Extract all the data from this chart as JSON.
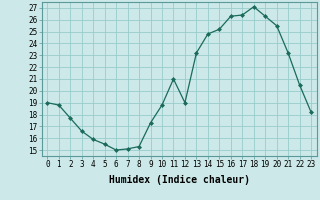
{
  "x": [
    0,
    1,
    2,
    3,
    4,
    5,
    6,
    7,
    8,
    9,
    10,
    11,
    12,
    13,
    14,
    15,
    16,
    17,
    18,
    19,
    20,
    21,
    22,
    23
  ],
  "y": [
    19.0,
    18.8,
    17.7,
    16.6,
    15.9,
    15.5,
    15.0,
    15.1,
    15.3,
    17.3,
    18.8,
    21.0,
    19.0,
    23.2,
    24.8,
    25.2,
    26.3,
    26.4,
    27.1,
    26.3,
    25.5,
    23.2,
    20.5,
    18.2
  ],
  "line_color": "#1a6b5a",
  "marker": "D",
  "marker_size": 2.0,
  "bg_color": "#cce8e8",
  "grid_color": "#99cccc",
  "xlabel": "Humidex (Indice chaleur)",
  "ylabel_ticks": [
    15,
    16,
    17,
    18,
    19,
    20,
    21,
    22,
    23,
    24,
    25,
    26,
    27
  ],
  "ylim": [
    14.5,
    27.5
  ],
  "xlim": [
    -0.5,
    23.5
  ],
  "tick_fontsize": 5.5,
  "xlabel_fontsize": 7.0
}
